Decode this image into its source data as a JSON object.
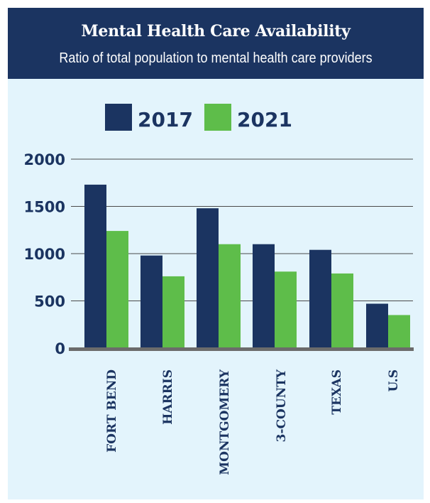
{
  "header": {
    "title": "Mental Health Care Availability",
    "subtitle": "Ratio of total population to mental health care providers"
  },
  "colors": {
    "header_bg": "#1b3461",
    "panel_bg": "#e3f4fc",
    "series_2017": "#1b3461",
    "series_2021": "#5ebd4a",
    "gridline": "#4a4a4a",
    "baseline": "#6b6b6b"
  },
  "chart_data": {
    "type": "bar",
    "title": "Mental Health Care Availability",
    "subtitle": "Ratio of total population to mental health care providers",
    "xlabel": "",
    "ylabel": "",
    "categories": [
      "FORT BEND",
      "HARRIS",
      "MONTGOMERY",
      "3-COUNTY",
      "TEXAS",
      "U.S"
    ],
    "series": [
      {
        "name": "2017",
        "color": "#1b3461",
        "values": [
          1730,
          980,
          1480,
          1100,
          1040,
          470
        ]
      },
      {
        "name": "2021",
        "color": "#5ebd4a",
        "values": [
          1240,
          760,
          1100,
          810,
          790,
          350
        ]
      }
    ],
    "ylim": [
      0,
      2000
    ],
    "yticks": [
      "2000",
      "1500",
      "1000",
      "500",
      "0"
    ],
    "ytick_values": [
      2000,
      1500,
      1000,
      500,
      0
    ],
    "grid": true,
    "legend_position": "top"
  }
}
